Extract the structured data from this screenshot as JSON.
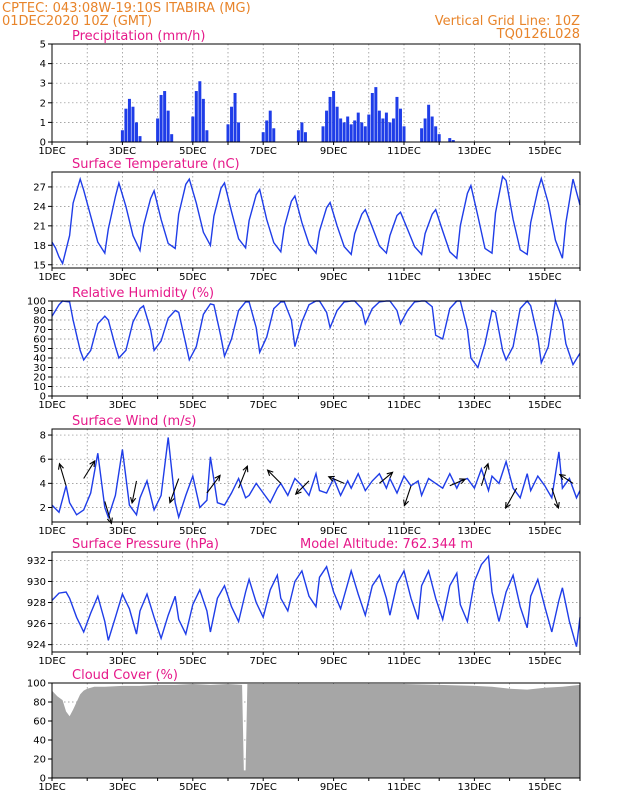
{
  "header": {
    "line1": "CPTEC:   043:08W-19:10S   ITABIRA (MG)",
    "line2": "01DEC2020 10Z (GMT)",
    "right1": "Vertical Grid Line: 10Z",
    "right2": "TQ0126L028"
  },
  "x_tick_labels": [
    "1DEC",
    "3DEC",
    "5DEC",
    "7DEC",
    "9DEC",
    "11DEC",
    "13DEC",
    "15DEC"
  ],
  "colors": {
    "header": "#e8842a",
    "title": "#e6198a",
    "series": "#1f3de8",
    "cloud": "#a6a6a6",
    "wind_arrow": "#000000"
  },
  "chart_data": [
    {
      "type": "bar",
      "title": "Precipitation (mm/h)",
      "x": [
        3.0,
        3.1,
        3.2,
        3.3,
        3.4,
        3.5,
        4.0,
        4.1,
        4.2,
        4.3,
        4.4,
        5.0,
        5.1,
        5.2,
        5.3,
        5.4,
        6.0,
        6.1,
        6.2,
        6.3,
        7.0,
        7.1,
        7.2,
        7.3,
        8.0,
        8.1,
        8.2,
        8.7,
        8.8,
        8.9,
        9.0,
        9.1,
        9.2,
        9.3,
        9.4,
        9.5,
        9.6,
        9.7,
        9.8,
        9.9,
        10.0,
        10.1,
        10.2,
        10.3,
        10.4,
        10.5,
        10.6,
        10.7,
        10.8,
        10.9,
        11.0,
        11.5,
        11.6,
        11.7,
        11.8,
        11.9,
        12.0,
        12.3,
        12.4
      ],
      "values": [
        0.6,
        1.7,
        2.2,
        1.8,
        1.0,
        0.3,
        1.2,
        2.4,
        2.6,
        1.6,
        0.4,
        1.3,
        2.6,
        3.1,
        2.2,
        0.6,
        0.9,
        1.8,
        2.5,
        1.0,
        0.5,
        1.1,
        1.6,
        0.7,
        0.6,
        1.0,
        0.5,
        0.8,
        1.6,
        2.3,
        2.6,
        1.8,
        1.2,
        1.0,
        1.3,
        0.9,
        1.1,
        1.5,
        1.0,
        0.8,
        1.4,
        2.5,
        2.8,
        1.6,
        1.2,
        1.5,
        1.0,
        1.2,
        2.3,
        1.7,
        0.8,
        0.7,
        1.2,
        1.9,
        1.3,
        0.8,
        0.4,
        0.2,
        0.1
      ],
      "ylim": [
        0,
        5
      ],
      "yticks": [
        0,
        1,
        2,
        3,
        4,
        5
      ],
      "xlim": [
        1,
        16
      ],
      "grid": true
    },
    {
      "type": "line",
      "title": "Surface Temperature (nC)",
      "x": [
        1.0,
        1.1,
        1.2,
        1.3,
        1.5,
        1.6,
        1.8,
        1.9,
        2.1,
        2.3,
        2.5,
        2.6,
        2.8,
        2.9,
        3.1,
        3.3,
        3.5,
        3.6,
        3.8,
        3.9,
        4.1,
        4.3,
        4.5,
        4.6,
        4.8,
        4.9,
        5.1,
        5.3,
        5.5,
        5.6,
        5.8,
        5.9,
        6.1,
        6.3,
        6.5,
        6.6,
        6.8,
        6.9,
        7.1,
        7.3,
        7.5,
        7.6,
        7.8,
        7.9,
        8.1,
        8.3,
        8.5,
        8.6,
        8.8,
        8.9,
        9.1,
        9.3,
        9.5,
        9.6,
        9.8,
        9.9,
        10.1,
        10.3,
        10.5,
        10.6,
        10.8,
        10.9,
        11.1,
        11.3,
        11.5,
        11.6,
        11.8,
        11.9,
        12.1,
        12.3,
        12.5,
        12.6,
        12.8,
        12.9,
        13.1,
        13.3,
        13.5,
        13.6,
        13.8,
        13.9,
        14.1,
        14.3,
        14.5,
        14.6,
        14.8,
        14.9,
        15.1,
        15.3,
        15.5,
        15.6,
        15.8,
        16.0
      ],
      "values": [
        18.5,
        17.6,
        16.2,
        15.2,
        19.5,
        24.5,
        28.2,
        26.5,
        22.5,
        18.5,
        16.8,
        20.5,
        25.5,
        27.6,
        24.0,
        19.5,
        17.2,
        21.0,
        25.2,
        26.4,
        22.0,
        18.3,
        17.5,
        22.8,
        27.4,
        28.2,
        24.5,
        20.0,
        18.0,
        22.5,
        26.8,
        27.6,
        23.2,
        19.0,
        17.6,
        21.8,
        25.8,
        26.6,
        22.0,
        18.4,
        17.0,
        20.8,
        24.8,
        25.6,
        21.5,
        18.2,
        16.8,
        20.2,
        23.8,
        24.6,
        21.0,
        17.8,
        16.6,
        19.8,
        22.8,
        23.5,
        20.8,
        17.9,
        16.8,
        19.5,
        22.6,
        23.1,
        20.5,
        17.8,
        16.6,
        19.8,
        22.8,
        23.5,
        20.2,
        17.0,
        16.0,
        21.0,
        26.0,
        27.2,
        22.5,
        17.5,
        16.8,
        23.0,
        28.6,
        28.0,
        22.0,
        17.3,
        16.6,
        21.5,
        26.5,
        28.3,
        24.5,
        18.8,
        16.0,
        21.5,
        28.2,
        24.2
      ],
      "ylim": [
        14.5,
        29.3
      ],
      "yticks": [
        15,
        18,
        21,
        24,
        27
      ],
      "xlim": [
        1,
        16
      ],
      "grid": true
    },
    {
      "type": "line",
      "title": "Relative Humidity (%)",
      "x": [
        1.0,
        1.1,
        1.2,
        1.3,
        1.5,
        1.6,
        1.8,
        1.9,
        2.1,
        2.3,
        2.5,
        2.6,
        2.8,
        2.9,
        3.1,
        3.3,
        3.5,
        3.6,
        3.8,
        3.9,
        4.1,
        4.3,
        4.5,
        4.6,
        4.8,
        4.9,
        5.1,
        5.3,
        5.5,
        5.6,
        5.8,
        5.9,
        6.1,
        6.3,
        6.5,
        6.6,
        6.8,
        6.9,
        7.1,
        7.3,
        7.5,
        7.6,
        7.8,
        7.9,
        8.1,
        8.3,
        8.5,
        8.6,
        8.8,
        8.9,
        9.1,
        9.3,
        9.5,
        9.6,
        9.8,
        9.9,
        10.1,
        10.3,
        10.5,
        10.6,
        10.8,
        10.9,
        11.1,
        11.3,
        11.5,
        11.6,
        11.8,
        11.9,
        12.1,
        12.3,
        12.5,
        12.6,
        12.8,
        12.9,
        13.1,
        13.3,
        13.5,
        13.6,
        13.8,
        13.9,
        14.1,
        14.3,
        14.5,
        14.6,
        14.8,
        14.9,
        15.1,
        15.3,
        15.5,
        15.6,
        15.8,
        16.0
      ],
      "values": [
        84,
        90,
        96,
        100,
        99,
        80,
        48,
        38,
        48,
        76,
        84,
        80,
        52,
        40,
        48,
        78,
        92,
        95,
        70,
        48,
        58,
        82,
        90,
        88,
        55,
        38,
        52,
        86,
        97,
        96,
        62,
        42,
        60,
        90,
        99,
        99,
        72,
        46,
        62,
        92,
        99,
        99,
        80,
        52,
        78,
        96,
        100,
        100,
        88,
        72,
        90,
        99,
        100,
        100,
        92,
        76,
        92,
        99,
        100,
        100,
        90,
        76,
        90,
        99,
        100,
        100,
        94,
        64,
        60,
        92,
        100,
        100,
        70,
        40,
        30,
        55,
        90,
        88,
        48,
        38,
        52,
        92,
        100,
        95,
        62,
        35,
        52,
        100,
        80,
        55,
        33,
        45
      ],
      "ylim": [
        0,
        100
      ],
      "yticks": [
        0,
        10,
        20,
        30,
        40,
        50,
        60,
        70,
        80,
        90,
        100
      ],
      "xlim": [
        1,
        16
      ],
      "grid": true
    },
    {
      "type": "line",
      "title": "Surface Wind (m/s)",
      "x": [
        1.0,
        1.2,
        1.4,
        1.5,
        1.7,
        1.9,
        2.1,
        2.3,
        2.5,
        2.6,
        2.8,
        3.0,
        3.2,
        3.4,
        3.5,
        3.7,
        3.9,
        4.1,
        4.3,
        4.5,
        4.6,
        4.8,
        5.0,
        5.2,
        5.4,
        5.5,
        5.7,
        5.9,
        6.1,
        6.3,
        6.5,
        6.6,
        6.8,
        7.0,
        7.2,
        7.4,
        7.5,
        7.7,
        7.9,
        8.1,
        8.3,
        8.5,
        8.6,
        8.8,
        9.0,
        9.2,
        9.4,
        9.5,
        9.7,
        9.9,
        10.1,
        10.3,
        10.5,
        10.6,
        10.8,
        11.0,
        11.2,
        11.4,
        11.5,
        11.7,
        11.9,
        12.1,
        12.3,
        12.5,
        12.6,
        12.8,
        13.0,
        13.2,
        13.4,
        13.5,
        13.7,
        13.9,
        14.1,
        14.3,
        14.5,
        14.6,
        14.8,
        15.0,
        15.2,
        15.4,
        15.5,
        15.7,
        15.9,
        16.0
      ],
      "values": [
        2.2,
        1.6,
        3.8,
        2.4,
        1.4,
        1.8,
        3.2,
        6.5,
        2.0,
        1.2,
        3.0,
        6.8,
        2.2,
        1.4,
        2.8,
        4.2,
        1.8,
        3.0,
        7.8,
        2.4,
        1.2,
        3.0,
        4.6,
        2.0,
        2.6,
        6.2,
        2.4,
        2.2,
        3.2,
        4.4,
        2.8,
        3.0,
        4.0,
        3.2,
        2.4,
        3.6,
        4.0,
        3.0,
        4.4,
        3.8,
        3.0,
        4.8,
        3.4,
        3.2,
        4.4,
        3.0,
        4.2,
        3.6,
        4.8,
        3.4,
        4.2,
        4.8,
        3.6,
        4.4,
        3.2,
        4.6,
        3.8,
        4.2,
        3.0,
        4.4,
        4.0,
        3.6,
        4.8,
        3.6,
        4.2,
        4.4,
        3.6,
        5.2,
        3.4,
        4.6,
        4.0,
        5.8,
        3.6,
        2.8,
        4.8,
        3.4,
        4.6,
        3.8,
        2.8,
        6.6,
        3.6,
        4.4,
        2.8,
        3.4
      ],
      "ylim": [
        0.8,
        8.5
      ],
      "yticks": [
        2,
        4,
        6,
        8
      ],
      "xlim": [
        1,
        16
      ],
      "grid": true,
      "wind_arrows": [
        {
          "x": 1.4,
          "v": 3.8,
          "dx": -0.3,
          "dy": 1.0
        },
        {
          "x": 1.9,
          "v": 4.4,
          "dx": 0.5,
          "dy": 0.8
        },
        {
          "x": 2.5,
          "v": 2.5,
          "dx": 0.3,
          "dy": -1.0
        },
        {
          "x": 3.4,
          "v": 4.2,
          "dx": -0.2,
          "dy": -1.0
        },
        {
          "x": 4.6,
          "v": 4.4,
          "dx": -0.4,
          "dy": -1.1
        },
        {
          "x": 5.4,
          "v": 3.2,
          "dx": 0.6,
          "dy": 0.8
        },
        {
          "x": 6.3,
          "v": 3.6,
          "dx": 0.4,
          "dy": 1.0
        },
        {
          "x": 7.5,
          "v": 4.0,
          "dx": -0.6,
          "dy": 0.6
        },
        {
          "x": 8.3,
          "v": 4.2,
          "dx": -0.6,
          "dy": -0.6
        },
        {
          "x": 9.3,
          "v": 4.0,
          "dx": -0.7,
          "dy": 0.3
        },
        {
          "x": 10.3,
          "v": 4.0,
          "dx": 0.6,
          "dy": 0.5
        },
        {
          "x": 11.2,
          "v": 3.8,
          "dx": -0.3,
          "dy": -0.9
        },
        {
          "x": 12.3,
          "v": 3.8,
          "dx": 0.7,
          "dy": 0.3
        },
        {
          "x": 13.2,
          "v": 3.8,
          "dx": 0.3,
          "dy": 1.0
        },
        {
          "x": 14.2,
          "v": 3.6,
          "dx": -0.5,
          "dy": -0.9
        },
        {
          "x": 15.2,
          "v": 3.6,
          "dx": 0.3,
          "dy": -0.9
        },
        {
          "x": 15.8,
          "v": 4.0,
          "dx": -0.6,
          "dy": 0.4
        }
      ]
    },
    {
      "type": "line",
      "title": "Surface Pressure (hPa)",
      "annotation": "Model Altitude: 762.344  m",
      "x": [
        1.0,
        1.2,
        1.4,
        1.5,
        1.7,
        1.9,
        2.1,
        2.3,
        2.5,
        2.6,
        2.8,
        3.0,
        3.2,
        3.4,
        3.5,
        3.7,
        3.9,
        4.1,
        4.3,
        4.5,
        4.6,
        4.8,
        5.0,
        5.2,
        5.4,
        5.5,
        5.7,
        5.9,
        6.1,
        6.3,
        6.5,
        6.6,
        6.8,
        7.0,
        7.2,
        7.4,
        7.5,
        7.7,
        7.9,
        8.1,
        8.3,
        8.5,
        8.6,
        8.8,
        9.0,
        9.2,
        9.4,
        9.5,
        9.7,
        9.9,
        10.1,
        10.3,
        10.5,
        10.6,
        10.8,
        11.0,
        11.2,
        11.4,
        11.5,
        11.7,
        11.9,
        12.1,
        12.3,
        12.5,
        12.6,
        12.8,
        13.0,
        13.2,
        13.4,
        13.5,
        13.7,
        13.9,
        14.1,
        14.3,
        14.5,
        14.6,
        14.8,
        15.0,
        15.2,
        15.4,
        15.5,
        15.7,
        15.9,
        16.0
      ],
      "values": [
        928.2,
        928.9,
        929.0,
        928.4,
        926.6,
        925.2,
        927.0,
        928.6,
        926.2,
        924.4,
        926.6,
        928.8,
        927.4,
        925.0,
        927.2,
        928.8,
        926.6,
        924.6,
        926.8,
        928.6,
        926.4,
        925.0,
        927.8,
        929.2,
        927.2,
        925.2,
        928.4,
        929.6,
        927.6,
        926.2,
        929.0,
        930.2,
        928.0,
        926.6,
        929.2,
        930.6,
        928.4,
        927.2,
        930.0,
        931.0,
        928.6,
        927.6,
        930.4,
        931.4,
        929.0,
        927.4,
        929.8,
        931.0,
        928.8,
        926.8,
        929.6,
        930.6,
        928.4,
        926.8,
        929.8,
        931.0,
        928.4,
        926.4,
        929.6,
        931.0,
        928.4,
        926.4,
        929.6,
        930.8,
        927.8,
        926.2,
        930.0,
        931.6,
        932.4,
        929.0,
        926.2,
        929.0,
        930.6,
        927.6,
        925.6,
        928.6,
        930.2,
        927.6,
        925.2,
        928.2,
        929.4,
        926.2,
        923.8,
        926.6
      ],
      "ylim": [
        923.3,
        932.8
      ],
      "yticks": [
        924,
        926,
        928,
        930,
        932
      ],
      "xlim": [
        1,
        16
      ],
      "grid": true
    },
    {
      "type": "area",
      "title": "Cloud Cover (%)",
      "x": [
        1.0,
        1.15,
        1.3,
        1.4,
        1.5,
        1.6,
        1.7,
        1.8,
        1.9,
        2.0,
        2.2,
        2.5,
        3.0,
        3.5,
        4.0,
        4.5,
        5.0,
        5.5,
        6.0,
        6.4,
        6.45,
        6.5,
        6.55,
        7.0,
        8.0,
        9.0,
        10.0,
        11.0,
        12.0,
        13.0,
        13.5,
        14.0,
        14.5,
        15.0,
        15.5,
        16.0
      ],
      "values": [
        92,
        86,
        82,
        70,
        65,
        72,
        80,
        88,
        92,
        94,
        96,
        96,
        97,
        97,
        98,
        98,
        99,
        98,
        99,
        98,
        8,
        8,
        99,
        99,
        99,
        99,
        99,
        99,
        98,
        97,
        96,
        94,
        93,
        95,
        96,
        98
      ],
      "ylim": [
        0,
        100
      ],
      "yticks": [
        0,
        20,
        40,
        60,
        80,
        100
      ],
      "xlim": [
        1,
        16
      ],
      "grid": true
    }
  ]
}
